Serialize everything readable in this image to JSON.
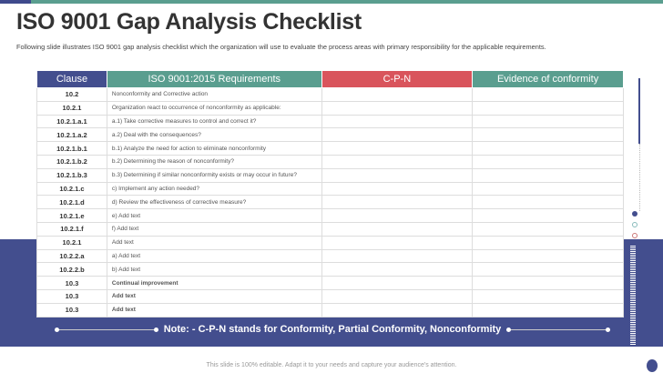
{
  "title": "ISO 9001 Gap Analysis Checklist",
  "subtitle": "Following slide illustrates ISO 9001 gap analysis checklist which the organization will use to evaluate the process areas with primary responsibility for the applicable requirements.",
  "table": {
    "headers": [
      "Clause",
      "ISO 9001:2015 Requirements",
      "C-P-N",
      "Evidence of conformity"
    ],
    "header_colors": [
      "#434e8e",
      "#5a9e8f",
      "#d9545c",
      "#5a9e8f"
    ],
    "rows": [
      {
        "clause": "10.2",
        "req": "Nonconformity and Corrective action"
      },
      {
        "clause": "10.2.1",
        "req": "Organization react to occurrence of nonconformity as applicable:"
      },
      {
        "clause": "10.2.1.a.1",
        "req": "a.1) Take corrective measures to control and correct it?"
      },
      {
        "clause": "10.2.1.a.2",
        "req": "a.2) Deal with the consequences?"
      },
      {
        "clause": "10.2.1.b.1",
        "req": "b.1) Analyze the need  for action to eliminate nonconformity"
      },
      {
        "clause": "10.2.1.b.2",
        "req": "b.2) Determining the reason of nonconformity?"
      },
      {
        "clause": "10.2.1.b.3",
        "req": "b.3) Determining  if similar nonconformity exists or may occur in future?"
      },
      {
        "clause": "10.2.1.c",
        "req": "c) Implement any action needed?"
      },
      {
        "clause": "10.2.1.d",
        "req": "d) Review the effectiveness of corrective measure?"
      },
      {
        "clause": "10.2.1.e",
        "req": "e) Add text"
      },
      {
        "clause": "10.2.1.f",
        "req": "f) Add text"
      },
      {
        "clause": "10.2.1",
        "req": "Add text"
      },
      {
        "clause": "10.2.2.a",
        "req": "a) Add text"
      },
      {
        "clause": "10.2.2.b",
        "req": "b) Add text"
      },
      {
        "clause": "10.3",
        "req": "Continual improvement",
        "bold": true
      },
      {
        "clause": "10.3",
        "req": "Add text",
        "bold": true
      },
      {
        "clause": "10.3",
        "req": "Add text",
        "bold": true
      }
    ]
  },
  "note": "Note: - C-P-N stands for Conformity, Partial Conformity, Nonconformity",
  "footer": "This slide is 100% editable. Adapt it to your needs and capture your audience's attention."
}
